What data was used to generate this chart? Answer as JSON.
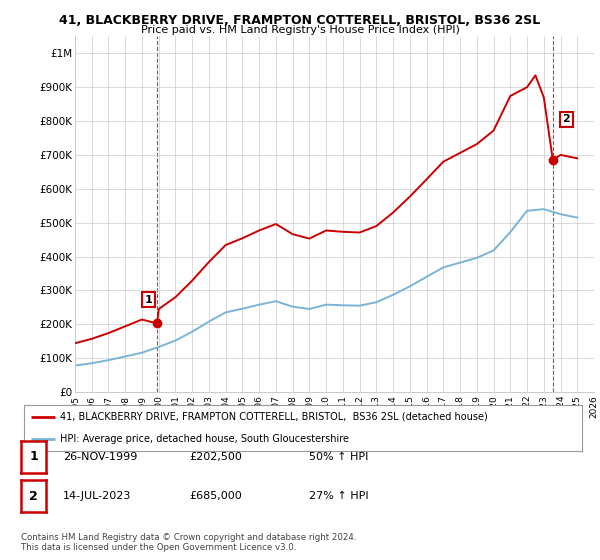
{
  "title": "41, BLACKBERRY DRIVE, FRAMPTON COTTERELL, BRISTOL, BS36 2SL",
  "subtitle": "Price paid vs. HM Land Registry's House Price Index (HPI)",
  "ylim": [
    0,
    1050000
  ],
  "yticks": [
    0,
    100000,
    200000,
    300000,
    400000,
    500000,
    600000,
    700000,
    800000,
    900000,
    1000000
  ],
  "ytick_labels": [
    "£0",
    "£100K",
    "£200K",
    "£300K",
    "£400K",
    "£500K",
    "£600K",
    "£700K",
    "£800K",
    "£900K",
    "£1M"
  ],
  "hpi_color": "#7ab4d8",
  "price_color": "#cc0000",
  "marker_color": "#cc0000",
  "point1_year": 1999.9,
  "point1_value": 202500,
  "point2_year": 2023.54,
  "point2_value": 685000,
  "legend_line1": "41, BLACKBERRY DRIVE, FRAMPTON COTTERELL, BRISTOL,  BS36 2SL (detached house)",
  "legend_line2": "HPI: Average price, detached house, South Gloucestershire",
  "table_row1": [
    "1",
    "26-NOV-1999",
    "£202,500",
    "50% ↑ HPI"
  ],
  "table_row2": [
    "2",
    "14-JUL-2023",
    "£685,000",
    "27% ↑ HPI"
  ],
  "footnote1": "Contains HM Land Registry data © Crown copyright and database right 2024.",
  "footnote2": "This data is licensed under the Open Government Licence v3.0.",
  "background_color": "#ffffff",
  "grid_color": "#cccccc",
  "xmin": 1995,
  "xmax": 2026,
  "hpi_years": [
    1995,
    1996,
    1997,
    1998,
    1999,
    2000,
    2001,
    2002,
    2003,
    2004,
    2005,
    2006,
    2007,
    2008,
    2009,
    2010,
    2011,
    2012,
    2013,
    2014,
    2015,
    2016,
    2017,
    2018,
    2019,
    2020,
    2021,
    2022,
    2023,
    2024,
    2025
  ],
  "hpi_values": [
    78000,
    85000,
    94000,
    105000,
    116000,
    133000,
    152000,
    178000,
    208000,
    235000,
    246000,
    258000,
    268000,
    252000,
    245000,
    258000,
    256000,
    255000,
    265000,
    287000,
    312000,
    340000,
    368000,
    382000,
    396000,
    418000,
    472000,
    535000,
    540000,
    525000,
    515000
  ],
  "red_years": [
    1995,
    1996,
    1997,
    1998,
    1999,
    1999.9,
    2000,
    2001,
    2002,
    2003,
    2004,
    2005,
    2006,
    2007,
    2008,
    2009,
    2010,
    2011,
    2012,
    2013,
    2014,
    2015,
    2016,
    2017,
    2018,
    2019,
    2020,
    2021,
    2022,
    2022.5,
    2023.0,
    2023.54,
    2024,
    2025
  ],
  "red_values": [
    144000,
    157000,
    174000,
    194000,
    214000,
    202500,
    245000,
    280000,
    329000,
    384000,
    434000,
    454000,
    477000,
    496000,
    466000,
    453000,
    477000,
    473000,
    471000,
    490000,
    530000,
    577000,
    628000,
    680000,
    706000,
    732000,
    772000,
    874000,
    900000,
    935000,
    870000,
    685000,
    700000,
    690000
  ]
}
